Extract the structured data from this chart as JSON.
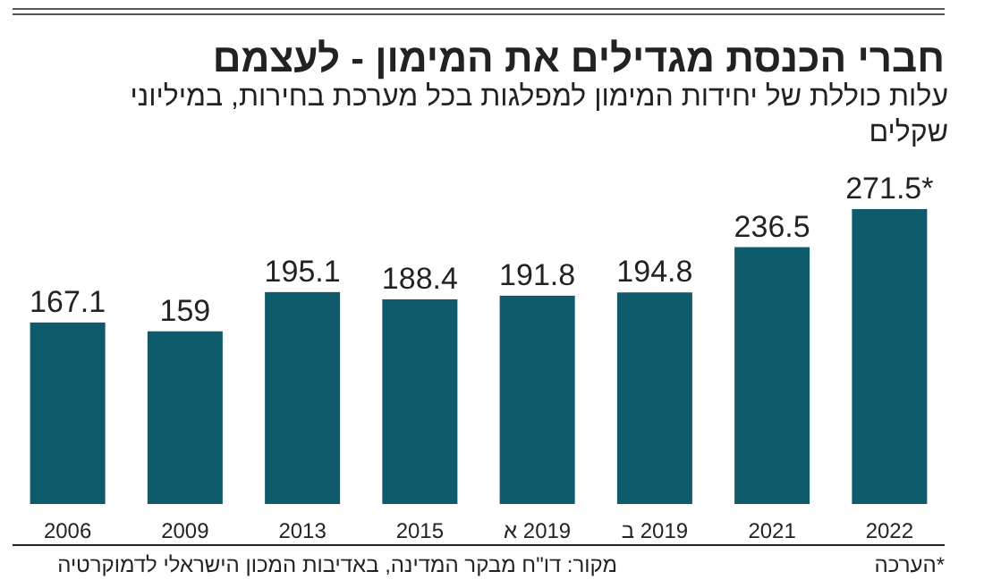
{
  "chart_data": {
    "type": "bar",
    "title": "חברי הכנסת מגדילים את המימון - לעצמם",
    "subtitle": "עלות כוללת של יחידות המימון למפלגות בכל מערכת בחירות, במיליוני שקלים",
    "categories": [
      "2006",
      "2009",
      "2013",
      "2015",
      "2019 א",
      "2019 ב",
      "2021",
      "2022"
    ],
    "values": [
      167.1,
      159,
      195.1,
      188.4,
      191.8,
      194.8,
      236.5,
      271.5
    ],
    "value_labels": [
      "167.1",
      "159",
      "195.1",
      "188.4",
      "191.8",
      "194.8",
      "236.5",
      "271.5*"
    ],
    "color": "#0e5b6c",
    "annotations": [
      "מקור: דו\"ח מבקר המדינה, באדיבות המכון הישראלי לדמוקרטיה",
      "*הערכה"
    ]
  }
}
